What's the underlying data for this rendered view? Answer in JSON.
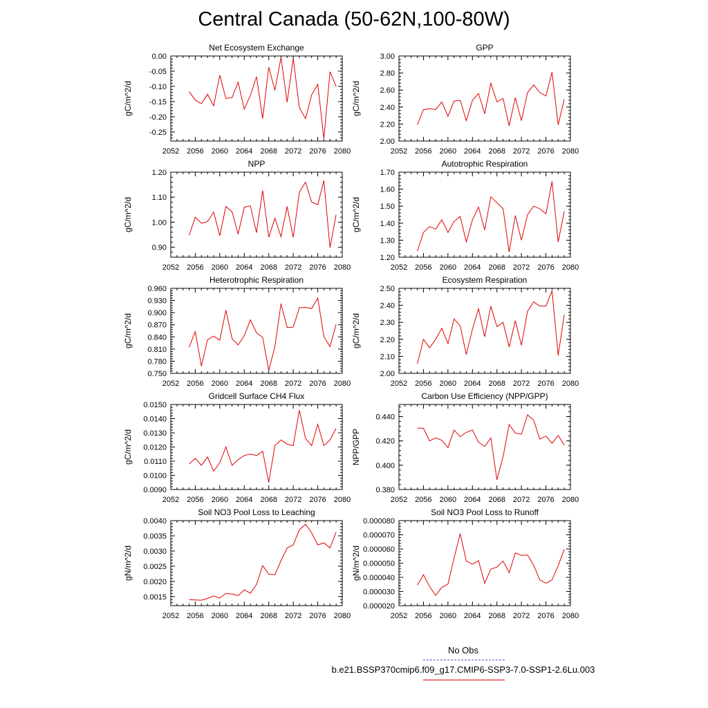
{
  "page_title": "Central Canada (50-62N,100-80W)",
  "legend": {
    "obs_label": "No Obs",
    "obs_color": "#5555cc",
    "run_label": "b.e21.BSSP370cmip6.f09_g17.CMIP6-SSP3-7.0-SSP1-2.6Lu.003",
    "run_color": "#e00000"
  },
  "chart_data": [
    {
      "type": "line",
      "title": "Net Ecosystem Exchange",
      "ylabel": "gC/m^2/d",
      "xlim": [
        2052,
        2080
      ],
      "xticks": [
        "2052",
        "2056",
        "2060",
        "2064",
        "2068",
        "2072",
        "2076",
        "2080"
      ],
      "ylim": [
        -0.28,
        0.0
      ],
      "yticks": [
        "-0.25",
        "-0.20",
        "-0.15",
        "-0.10",
        "-0.05",
        "0.00"
      ],
      "x": [
        2055,
        2056,
        2057,
        2058,
        2059,
        2060,
        2061,
        2062,
        2063,
        2064,
        2065,
        2066,
        2067,
        2068,
        2069,
        2070,
        2071,
        2072,
        2073,
        2074,
        2075,
        2076,
        2077,
        2078,
        2079
      ],
      "series": [
        {
          "values": [
            -0.117,
            -0.145,
            -0.157,
            -0.126,
            -0.164,
            -0.063,
            -0.14,
            -0.137,
            -0.086,
            -0.175,
            -0.13,
            -0.068,
            -0.206,
            -0.037,
            -0.113,
            -0.005,
            -0.152,
            -0.008,
            -0.17,
            -0.206,
            -0.128,
            -0.093,
            -0.272,
            -0.052,
            -0.1
          ]
        }
      ]
    },
    {
      "type": "line",
      "title": "GPP",
      "ylabel": "gC/m^2/d",
      "xlim": [
        2052,
        2080
      ],
      "xticks": [
        "2052",
        "2056",
        "2060",
        "2064",
        "2068",
        "2072",
        "2076",
        "2080"
      ],
      "ylim": [
        2.0,
        3.0
      ],
      "yticks": [
        "2.00",
        "2.20",
        "2.40",
        "2.60",
        "2.80",
        "3.00"
      ],
      "x": [
        2055,
        2056,
        2057,
        2058,
        2059,
        2060,
        2061,
        2062,
        2063,
        2064,
        2065,
        2066,
        2067,
        2068,
        2069,
        2070,
        2071,
        2072,
        2073,
        2074,
        2075,
        2076,
        2077,
        2078,
        2079
      ],
      "series": [
        {
          "values": [
            2.19,
            2.37,
            2.38,
            2.37,
            2.46,
            2.29,
            2.47,
            2.48,
            2.24,
            2.48,
            2.56,
            2.32,
            2.68,
            2.46,
            2.5,
            2.18,
            2.51,
            2.24,
            2.57,
            2.66,
            2.57,
            2.53,
            2.81,
            2.19,
            2.49
          ]
        }
      ]
    },
    {
      "type": "line",
      "title": "NPP",
      "ylabel": "gC/m^2/d",
      "xlim": [
        2052,
        2080
      ],
      "xticks": [
        "2052",
        "2056",
        "2060",
        "2064",
        "2068",
        "2072",
        "2076",
        "2080"
      ],
      "ylim": [
        0.86,
        1.2
      ],
      "yticks": [
        "0.90",
        "1.00",
        "1.10",
        "1.20"
      ],
      "x": [
        2055,
        2056,
        2057,
        2058,
        2059,
        2060,
        2061,
        2062,
        2063,
        2064,
        2065,
        2066,
        2067,
        2068,
        2069,
        2070,
        2071,
        2072,
        2073,
        2074,
        2075,
        2076,
        2077,
        2078,
        2079
      ],
      "series": [
        {
          "values": [
            0.948,
            1.02,
            0.996,
            1.002,
            1.04,
            0.946,
            1.063,
            1.042,
            0.952,
            1.06,
            1.065,
            0.958,
            1.127,
            0.94,
            1.016,
            0.942,
            1.063,
            0.94,
            1.12,
            1.16,
            1.081,
            1.07,
            1.166,
            0.898,
            1.03
          ]
        }
      ]
    },
    {
      "type": "line",
      "title": "Autotrophic Respiration",
      "ylabel": "gC/m^2/d",
      "xlim": [
        2052,
        2080
      ],
      "xticks": [
        "2052",
        "2056",
        "2060",
        "2064",
        "2068",
        "2072",
        "2076",
        "2080"
      ],
      "ylim": [
        1.2,
        1.7
      ],
      "yticks": [
        "1.20",
        "1.30",
        "1.40",
        "1.50",
        "1.60",
        "1.70"
      ],
      "x": [
        2055,
        2056,
        2057,
        2058,
        2059,
        2060,
        2061,
        2062,
        2063,
        2064,
        2065,
        2066,
        2067,
        2068,
        2069,
        2070,
        2071,
        2072,
        2073,
        2074,
        2075,
        2076,
        2077,
        2078,
        2079
      ],
      "series": [
        {
          "values": [
            1.235,
            1.345,
            1.38,
            1.365,
            1.42,
            1.345,
            1.41,
            1.44,
            1.29,
            1.42,
            1.495,
            1.36,
            1.555,
            1.52,
            1.485,
            1.23,
            1.445,
            1.3,
            1.45,
            1.5,
            1.485,
            1.455,
            1.645,
            1.29,
            1.47
          ]
        }
      ]
    },
    {
      "type": "line",
      "title": "Heterotrophic Respiration",
      "ylabel": "gC/m^2/d",
      "xlim": [
        2052,
        2080
      ],
      "xticks": [
        "2052",
        "2056",
        "2060",
        "2064",
        "2068",
        "2072",
        "2076",
        "2080"
      ],
      "ylim": [
        0.75,
        0.96
      ],
      "yticks": [
        "0.750",
        "0.780",
        "0.810",
        "0.840",
        "0.870",
        "0.900",
        "0.930",
        "0.960"
      ],
      "x": [
        2055,
        2056,
        2057,
        2058,
        2059,
        2060,
        2061,
        2062,
        2063,
        2064,
        2065,
        2066,
        2067,
        2068,
        2069,
        2070,
        2071,
        2072,
        2073,
        2074,
        2075,
        2076,
        2077,
        2078,
        2079
      ],
      "series": [
        {
          "values": [
            0.815,
            0.853,
            0.768,
            0.833,
            0.842,
            0.832,
            0.906,
            0.836,
            0.82,
            0.843,
            0.882,
            0.85,
            0.839,
            0.757,
            0.816,
            0.922,
            0.863,
            0.864,
            0.912,
            0.913,
            0.91,
            0.936,
            0.841,
            0.816,
            0.871
          ]
        }
      ]
    },
    {
      "type": "line",
      "title": "Ecosystem Respiration",
      "ylabel": "gC/m^2/d",
      "xlim": [
        2052,
        2080
      ],
      "xticks": [
        "2052",
        "2056",
        "2060",
        "2064",
        "2068",
        "2072",
        "2076",
        "2080"
      ],
      "ylim": [
        2.0,
        2.5
      ],
      "yticks": [
        "2.00",
        "2.10",
        "2.20",
        "2.30",
        "2.40",
        "2.50"
      ],
      "x": [
        2055,
        2056,
        2057,
        2058,
        2059,
        2060,
        2061,
        2062,
        2063,
        2064,
        2065,
        2066,
        2067,
        2068,
        2069,
        2070,
        2071,
        2072,
        2073,
        2074,
        2075,
        2076,
        2077,
        2078,
        2079
      ],
      "series": [
        {
          "values": [
            2.055,
            2.2,
            2.15,
            2.2,
            2.265,
            2.175,
            2.32,
            2.28,
            2.11,
            2.26,
            2.38,
            2.215,
            2.395,
            2.275,
            2.3,
            2.155,
            2.31,
            2.165,
            2.365,
            2.42,
            2.395,
            2.395,
            2.485,
            2.105,
            2.345
          ]
        }
      ]
    },
    {
      "type": "line",
      "title": "Gridcell Surface CH4 Flux",
      "ylabel": "gC/m^2/d",
      "xlim": [
        2052,
        2080
      ],
      "xticks": [
        "2052",
        "2056",
        "2060",
        "2064",
        "2068",
        "2072",
        "2076",
        "2080"
      ],
      "ylim": [
        0.009,
        0.015
      ],
      "yticks": [
        "0.0090",
        "0.0100",
        "0.0110",
        "0.0120",
        "0.0130",
        "0.0140",
        "0.0150"
      ],
      "x": [
        2055,
        2056,
        2057,
        2058,
        2059,
        2060,
        2061,
        2062,
        2063,
        2064,
        2065,
        2066,
        2067,
        2068,
        2069,
        2070,
        2071,
        2072,
        2073,
        2074,
        2075,
        2076,
        2077,
        2078,
        2079
      ],
      "series": [
        {
          "values": [
            0.0108,
            0.0112,
            0.0107,
            0.0113,
            0.0103,
            0.0109,
            0.012,
            0.0107,
            0.0111,
            0.0114,
            0.0115,
            0.0114,
            0.0117,
            0.0095,
            0.0121,
            0.0125,
            0.0122,
            0.0121,
            0.0146,
            0.0126,
            0.0121,
            0.0136,
            0.0121,
            0.0125,
            0.0133
          ]
        }
      ]
    },
    {
      "type": "line",
      "title": "Carbon Use Efficiency (NPP/GPP)",
      "ylabel": "NPP/GPP",
      "xlim": [
        2052,
        2080
      ],
      "xticks": [
        "2052",
        "2056",
        "2060",
        "2064",
        "2068",
        "2072",
        "2076",
        "2080"
      ],
      "ylim": [
        0.38,
        0.45
      ],
      "yticks": [
        "0.380",
        "0.400",
        "0.420",
        "0.440"
      ],
      "x": [
        2055,
        2056,
        2057,
        2058,
        2059,
        2060,
        2061,
        2062,
        2063,
        2064,
        2065,
        2066,
        2067,
        2068,
        2069,
        2070,
        2071,
        2072,
        2073,
        2074,
        2075,
        2076,
        2077,
        2078,
        2079
      ],
      "series": [
        {
          "values": [
            0.4305,
            0.4305,
            0.42,
            0.4225,
            0.4205,
            0.4145,
            0.429,
            0.4235,
            0.427,
            0.429,
            0.419,
            0.4155,
            0.4225,
            0.388,
            0.407,
            0.4335,
            0.4265,
            0.4255,
            0.4415,
            0.437,
            0.4215,
            0.424,
            0.418,
            0.4245,
            0.4165
          ]
        }
      ]
    },
    {
      "type": "line",
      "title": "Soil NO3 Pool Loss to Leaching",
      "ylabel": "gN/m^2/d",
      "xlim": [
        2052,
        2080
      ],
      "xticks": [
        "2052",
        "2056",
        "2060",
        "2064",
        "2068",
        "2072",
        "2076",
        "2080"
      ],
      "ylim": [
        0.0012,
        0.004
      ],
      "yticks": [
        "0.0015",
        "0.0020",
        "0.0025",
        "0.0030",
        "0.0035",
        "0.0040"
      ],
      "x": [
        2055,
        2056,
        2057,
        2058,
        2059,
        2060,
        2061,
        2062,
        2063,
        2064,
        2065,
        2066,
        2067,
        2068,
        2069,
        2070,
        2071,
        2072,
        2073,
        2074,
        2075,
        2076,
        2077,
        2078,
        2079
      ],
      "series": [
        {
          "values": [
            0.0014,
            0.00139,
            0.00138,
            0.00144,
            0.00152,
            0.00145,
            0.0016,
            0.00158,
            0.00153,
            0.00172,
            0.00161,
            0.0019,
            0.00252,
            0.00224,
            0.00222,
            0.00268,
            0.0031,
            0.0032,
            0.0037,
            0.00388,
            0.0036,
            0.0032,
            0.00327,
            0.0031,
            0.00362
          ]
        }
      ]
    },
    {
      "type": "line",
      "title": "Soil NO3 Pool Loss to Runoff",
      "ylabel": "gN/m^2/d",
      "xlim": [
        2052,
        2080
      ],
      "xticks": [
        "2052",
        "2056",
        "2060",
        "2064",
        "2068",
        "2072",
        "2076",
        "2080"
      ],
      "ylim": [
        2e-05,
        8e-05
      ],
      "yticks": [
        "0.000020",
        "0.000030",
        "0.000040",
        "0.000050",
        "0.000060",
        "0.000070",
        "0.000080"
      ],
      "x": [
        2055,
        2056,
        2057,
        2058,
        2059,
        2060,
        2061,
        2062,
        2063,
        2064,
        2065,
        2066,
        2067,
        2068,
        2069,
        2070,
        2071,
        2072,
        2073,
        2074,
        2075,
        2076,
        2077,
        2078,
        2079
      ],
      "series": [
        {
          "values": [
            3.45e-05,
            4.18e-05,
            3.35e-05,
            2.72e-05,
            3.3e-05,
            3.52e-05,
            5.35e-05,
            7.08e-05,
            5.15e-05,
            4.92e-05,
            5.18e-05,
            3.58e-05,
            4.58e-05,
            4.72e-05,
            5.15e-05,
            4.32e-05,
            5.72e-05,
            5.55e-05,
            5.58e-05,
            4.85e-05,
            3.82e-05,
            3.58e-05,
            3.82e-05,
            4.82e-05,
            5.98e-05
          ]
        }
      ]
    }
  ]
}
